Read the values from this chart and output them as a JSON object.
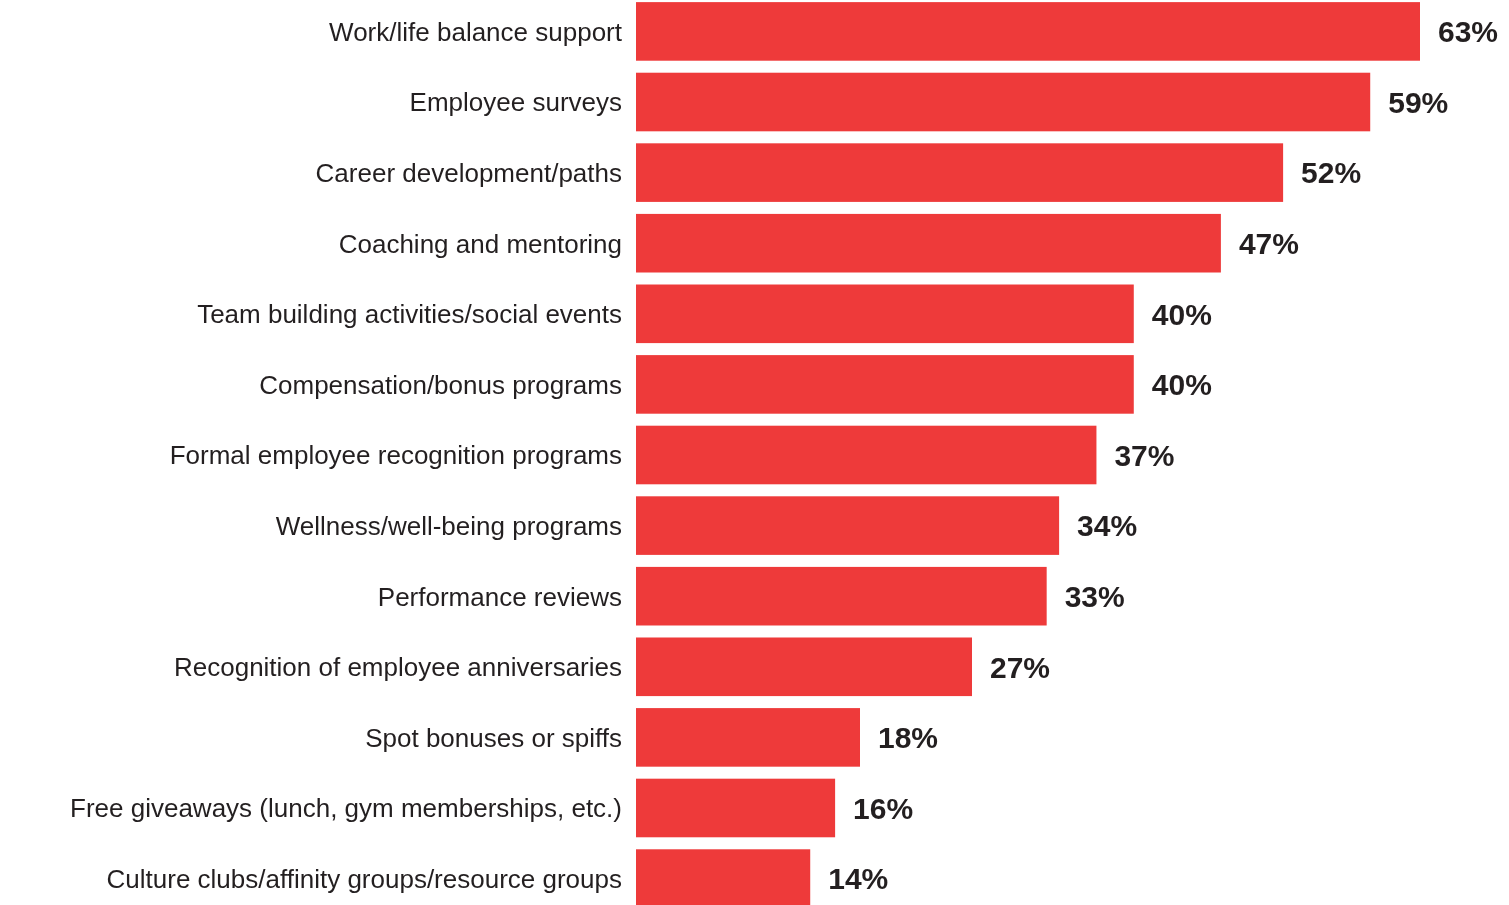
{
  "chart_data": {
    "type": "bar",
    "orientation": "horizontal",
    "value_labels": [
      "63%",
      "59%",
      "52%",
      "47%",
      "40%",
      "40%",
      "37%",
      "34%",
      "33%",
      "27%",
      "18%",
      "16%",
      "14%"
    ],
    "color": "#ee3a3a",
    "categories": [
      "Work/life balance support",
      "Employee surveys",
      "Career development/paths",
      "Coaching and mentoring",
      "Team building activities/social events",
      "Compensation/bonus programs",
      "Formal employee recognition programs",
      "Wellness/well-being programs",
      "Performance reviews",
      "Recognition of employee anniversaries",
      "Spot bonuses or spiffs",
      "Free giveaways (lunch, gym memberships, etc.)",
      "Culture clubs/affinity groups/resource groups"
    ],
    "values": [
      63,
      59,
      52,
      47,
      40,
      40,
      37,
      34,
      33,
      27,
      18,
      16,
      14
    ]
  }
}
